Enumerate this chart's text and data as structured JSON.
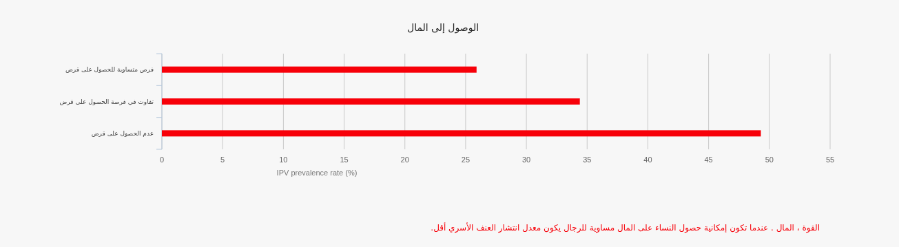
{
  "chart_data": {
    "type": "bar",
    "orientation": "horizontal",
    "title": "الوصول إلى المال",
    "categories": [
      "فرص متساوية للحصول على قرض",
      "تفاوت في فرصة الحصول على قرض",
      "عدم الحصول على قرض"
    ],
    "values": [
      25.9,
      34.4,
      49.3
    ],
    "color": "#f70009",
    "xlim": [
      0,
      55
    ],
    "xticks": [
      0,
      5,
      10,
      15,
      20,
      25,
      30,
      35,
      40,
      45,
      50,
      55
    ],
    "xlabel": "IPV prevalence rate (%)",
    "grid": "x",
    "annotations": [
      "القوة ، المال . عندما تكون إمكانية حصول النساء على المال مساوية للرجال يكون معدل انتشار العنف الأسري أقل."
    ]
  }
}
